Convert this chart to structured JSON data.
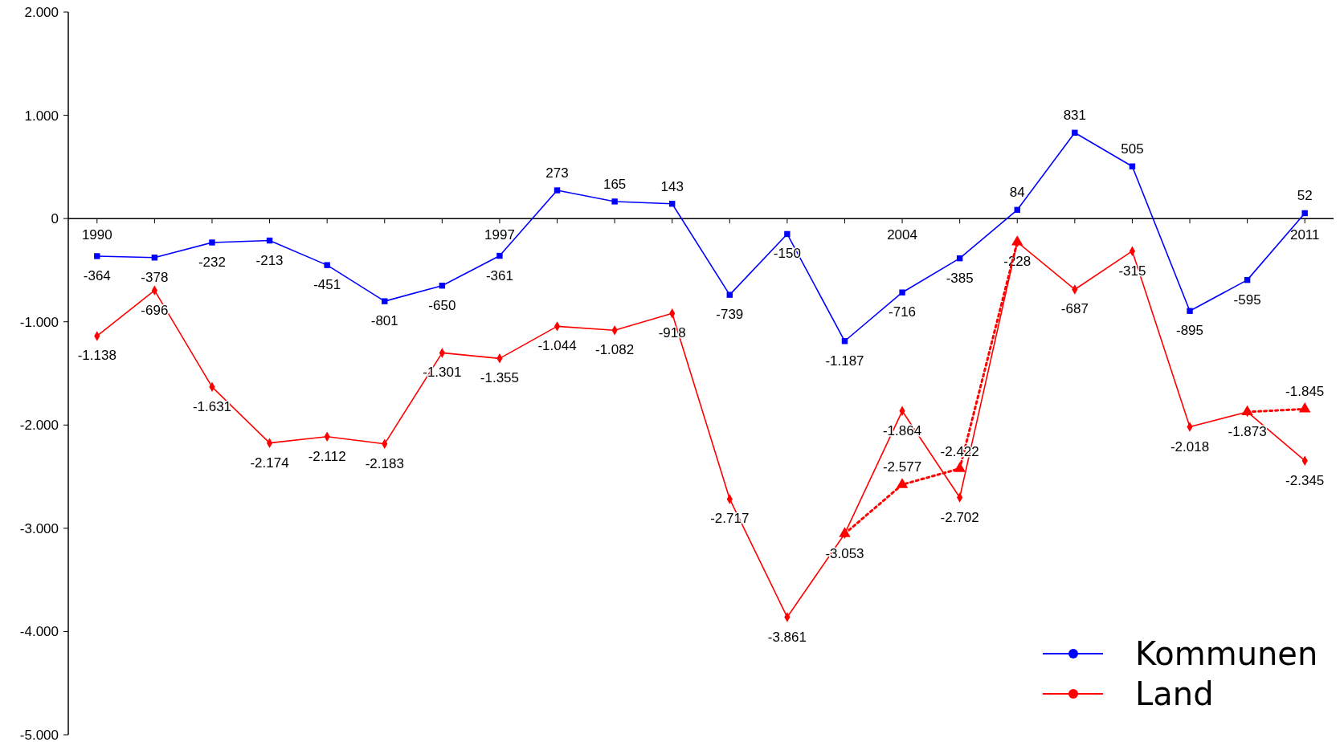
{
  "chart_data": {
    "type": "line",
    "x": [
      1990,
      1991,
      1992,
      1993,
      1994,
      1995,
      1996,
      1997,
      1998,
      1999,
      2000,
      2001,
      2002,
      2003,
      2004,
      2005,
      2006,
      2007,
      2008,
      2009,
      2010,
      2011
    ],
    "series": [
      {
        "name": "Kommunen",
        "color": "#0000ff",
        "marker": "square",
        "values": [
          -364,
          -378,
          -232,
          -213,
          -451,
          -801,
          -650,
          -361,
          273,
          165,
          143,
          -739,
          -150,
          -1187,
          -716,
          -385,
          84,
          831,
          505,
          -895,
          -595,
          52
        ],
        "value_labels": [
          "-364",
          "-378",
          "-232",
          "-213",
          "-451",
          "-801",
          "-650",
          "-361",
          "273",
          "165",
          "143",
          "-739",
          "-150",
          "-1.187",
          "-716",
          "-385",
          "84",
          "831",
          "505",
          "-895",
          "-595",
          "52"
        ]
      },
      {
        "name": "Land",
        "color": "#ff0000",
        "marker": "diamond",
        "values": [
          -1138,
          -696,
          -1631,
          -2174,
          -2112,
          -2183,
          -1301,
          -1355,
          -1044,
          -1082,
          -918,
          -2717,
          -3861,
          -3053,
          -1864,
          -2702,
          -228,
          -687,
          -315,
          -2018,
          -1873,
          -2345
        ],
        "value_labels": [
          "-1.138",
          "-696",
          "-1.631",
          "-2.174",
          "-2.112",
          "-2.183",
          "-1.301",
          "-1.355",
          "-1.044",
          "-1.082",
          "-918",
          "-2.717",
          "-3.861",
          "-3.053",
          "-1.864",
          "-2.702",
          "-228",
          "-687",
          "-315",
          "-2.018",
          "-1.873",
          "-2.345"
        ]
      },
      {
        "color": "#ff0000",
        "marker": "triangle",
        "line_style": "dotted",
        "values": [
          null,
          null,
          null,
          null,
          null,
          null,
          null,
          null,
          null,
          null,
          null,
          null,
          null,
          -3053,
          -2577,
          -2422,
          -228,
          null,
          null,
          null,
          -1873,
          -1845
        ],
        "value_labels": [
          null,
          null,
          null,
          null,
          null,
          null,
          null,
          null,
          null,
          null,
          null,
          null,
          null,
          null,
          "-2.577",
          "-2.422",
          null,
          null,
          null,
          null,
          null,
          "-1.845"
        ]
      }
    ],
    "xlim": [
      1989.5,
      2011.5
    ],
    "xticks": [
      {
        "value": 1990,
        "label": "1990"
      },
      {
        "value": 1991,
        "label": null
      },
      {
        "value": 1992,
        "label": null
      },
      {
        "value": 1993,
        "label": null
      },
      {
        "value": 1994,
        "label": null
      },
      {
        "value": 1995,
        "label": null
      },
      {
        "value": 1996,
        "label": null
      },
      {
        "value": 1997,
        "label": "1997"
      },
      {
        "value": 1998,
        "label": null
      },
      {
        "value": 1999,
        "label": null
      },
      {
        "value": 2000,
        "label": null
      },
      {
        "value": 2001,
        "label": null
      },
      {
        "value": 2002,
        "label": null
      },
      {
        "value": 2003,
        "label": null
      },
      {
        "value": 2004,
        "label": "2004"
      },
      {
        "value": 2005,
        "label": null
      },
      {
        "value": 2006,
        "label": null
      },
      {
        "value": 2007,
        "label": null
      },
      {
        "value": 2008,
        "label": null
      },
      {
        "value": 2009,
        "label": null
      },
      {
        "value": 2010,
        "label": null
      },
      {
        "value": 2011,
        "label": "2011"
      }
    ],
    "ylim": [
      -5000,
      2000
    ],
    "yticks": [
      {
        "value": 2000,
        "label": "2.000"
      },
      {
        "value": 1000,
        "label": "1.000"
      },
      0,
      {
        "value": -1000,
        "label": "-1.000"
      },
      {
        "value": -2000,
        "label": "-2.000"
      },
      {
        "value": -3000,
        "label": "-3.000"
      },
      {
        "value": -4000,
        "label": "-4.000"
      },
      {
        "value": -5000,
        "label": "-5.000"
      }
    ],
    "grid": false,
    "legend": "bottom right",
    "line_style": "solid"
  }
}
